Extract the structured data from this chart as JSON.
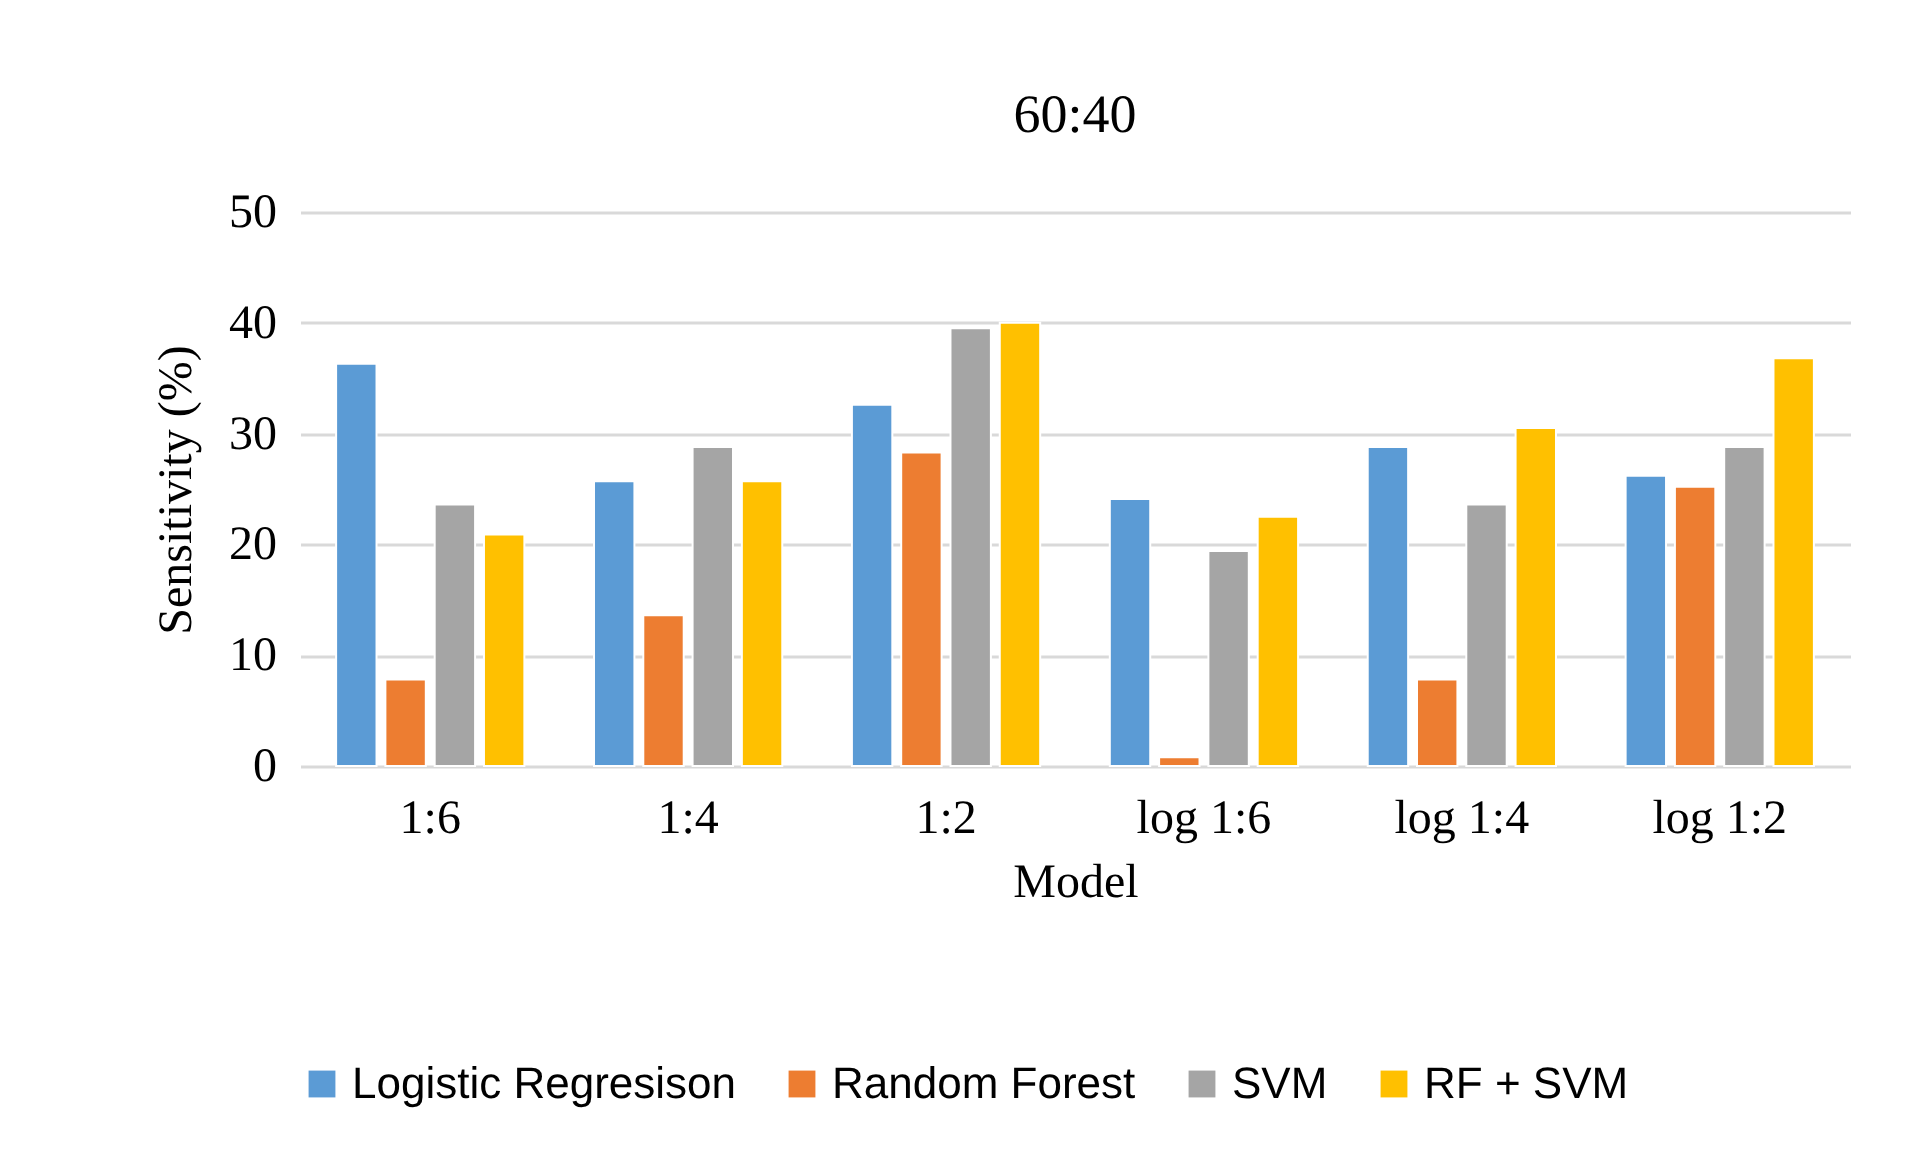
{
  "chart_data": {
    "type": "bar",
    "title": "60:40",
    "xlabel": "Model",
    "ylabel": "Sensitivity (%)",
    "categories": [
      "1:6",
      "1:4",
      "1:2",
      "log 1:6",
      "log 1:4",
      "log 1:2"
    ],
    "series": [
      {
        "name": "Logistic Regresison",
        "color": "#5b9bd5",
        "values": [
          36.3,
          25.7,
          32.6,
          24.1,
          28.8,
          26.2
        ]
      },
      {
        "name": "Random Forest",
        "color": "#ed7d31",
        "values": [
          7.8,
          13.6,
          28.3,
          0.8,
          7.8,
          25.2
        ]
      },
      {
        "name": "SVM",
        "color": "#a5a5a5",
        "values": [
          23.6,
          28.8,
          39.5,
          19.4,
          23.6,
          28.8
        ]
      },
      {
        "name": "RF + SVM",
        "color": "#ffc000",
        "values": [
          20.9,
          25.7,
          40.0,
          22.5,
          30.5,
          36.8
        ]
      }
    ],
    "ylim": [
      0,
      50
    ],
    "yticks": [
      0,
      10,
      20,
      30,
      40,
      50
    ],
    "grid": "y",
    "legend": "bottom"
  }
}
